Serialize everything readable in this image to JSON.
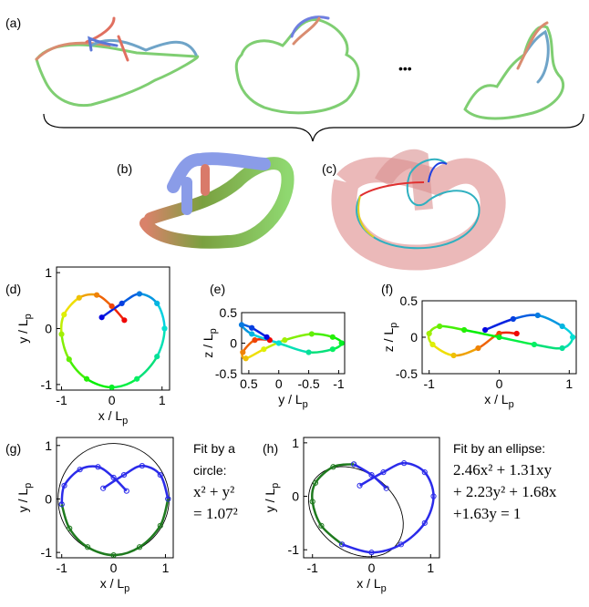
{
  "labels": {
    "a": "(a)",
    "b": "(b)",
    "c": "(c)",
    "ellipsis": "•••"
  },
  "chart_data": [
    {
      "type": "line",
      "panel": "(d)",
      "xlabel": "x / L",
      "xlabel_sub": "p",
      "ylabel": "y / L",
      "ylabel_sub": "p",
      "xlim": [
        -1.1,
        1.15
      ],
      "ylim": [
        -1.1,
        1.1
      ],
      "xticks": [
        -1,
        0,
        1
      ],
      "yticks": [
        -1,
        0,
        1
      ],
      "colormap": "jet",
      "series": [
        {
          "x": [
            0.25,
            0,
            -0.3,
            -0.65,
            -0.95,
            -1.0,
            -0.85,
            -0.5,
            0,
            0.5,
            0.9,
            1.05,
            0.9,
            0.55,
            0.2,
            -0.2
          ],
          "y": [
            0.15,
            0.4,
            0.6,
            0.55,
            0.25,
            -0.1,
            -0.55,
            -0.9,
            -1.05,
            -0.9,
            -0.5,
            0,
            0.45,
            0.62,
            0.45,
            0.2
          ]
        }
      ]
    },
    {
      "type": "line",
      "panel": "(e)",
      "xlabel": "y / L",
      "xlabel_sub": "p",
      "ylabel": "z / L",
      "ylabel_sub": "p",
      "xlim": [
        0.62,
        -1.1
      ],
      "ylim": [
        -0.5,
        0.5
      ],
      "xticks": [
        0.5,
        0,
        -0.5,
        -1
      ],
      "yticks": [
        -0.5,
        0,
        0.5
      ],
      "colormap": "jet",
      "series": [
        {
          "x": [
            0.15,
            0.4,
            0.6,
            0.55,
            0.25,
            -0.1,
            -0.55,
            -0.9,
            -1.05,
            -0.9,
            -0.5,
            0,
            0.45,
            0.62,
            0.45,
            0.2
          ],
          "y": [
            0.05,
            0.05,
            -0.15,
            -0.25,
            -0.1,
            0.05,
            0.15,
            0.1,
            0,
            -0.1,
            -0.15,
            0,
            0.15,
            0.3,
            0.25,
            0.1
          ]
        }
      ]
    },
    {
      "type": "line",
      "panel": "(f)",
      "xlabel": "x / L",
      "xlabel_sub": "p",
      "ylabel": "z / L",
      "ylabel_sub": "p",
      "xlim": [
        -1.1,
        1.1
      ],
      "ylim": [
        -0.5,
        0.5
      ],
      "xticks": [
        -1,
        0,
        1
      ],
      "yticks": [
        -0.5,
        0,
        0.5
      ],
      "colormap": "jet",
      "series": [
        {
          "x": [
            0.25,
            0,
            -0.3,
            -0.65,
            -0.95,
            -1.0,
            -0.85,
            -0.5,
            0,
            0.5,
            0.9,
            1.05,
            0.9,
            0.55,
            0.2,
            -0.2
          ],
          "y": [
            0.05,
            0.05,
            -0.15,
            -0.25,
            -0.1,
            0.05,
            0.15,
            0.1,
            0,
            -0.1,
            -0.15,
            0,
            0.15,
            0.3,
            0.25,
            0.1
          ]
        }
      ]
    },
    {
      "type": "line",
      "panel": "(g)",
      "xlabel": "x / L",
      "xlabel_sub": "p",
      "ylabel": "y / L",
      "ylabel_sub": "p",
      "xlim": [
        -1.1,
        1.15
      ],
      "ylim": [
        -1.1,
        1.15
      ],
      "xticks": [
        -1,
        0,
        1
      ],
      "yticks": [
        -1,
        0,
        1
      ],
      "annotation": [
        "Fit by a",
        "circle:",
        "x² + y²",
        "= 1.07²"
      ],
      "fit_radius": 1.07,
      "series": [
        {
          "color": "#1e7a1e",
          "x": [
            -1.0,
            -0.85,
            -0.5,
            0,
            0.5,
            0.9,
            1.05
          ],
          "y": [
            -0.1,
            -0.55,
            -0.9,
            -1.05,
            -0.9,
            -0.5,
            0
          ]
        },
        {
          "color": "#2b2bea",
          "x": [
            0.25,
            0,
            -0.3,
            -0.65,
            -0.95,
            -1.0,
            null,
            1.05,
            0.9,
            0.55,
            0.2,
            -0.2
          ],
          "y": [
            0.15,
            0.4,
            0.6,
            0.55,
            0.25,
            -0.1,
            null,
            0,
            0.45,
            0.62,
            0.45,
            0.2
          ]
        }
      ]
    },
    {
      "type": "line",
      "panel": "(h)",
      "xlabel": "x / L",
      "xlabel_sub": "p",
      "ylabel": "y / L",
      "ylabel_sub": "p",
      "xlim": [
        -1.15,
        1.15
      ],
      "ylim": [
        -1.15,
        1.1
      ],
      "xticks": [
        -1,
        0,
        1
      ],
      "yticks": [
        -1,
        0,
        1
      ],
      "annotation": [
        "Fit by an ellipse:",
        "2.46x² + 1.31xy",
        "+ 2.23y² + 1.68x",
        "+1.63y = 1"
      ],
      "fit_coefficients": [
        2.46,
        1.31,
        2.23,
        1.68,
        1.63
      ],
      "series": [
        {
          "color": "#1e7a1e",
          "x": [
            -0.3,
            -0.65,
            -0.95,
            -1.0,
            -0.85,
            -0.5
          ],
          "y": [
            0.6,
            0.55,
            0.25,
            -0.1,
            -0.55,
            -0.9
          ]
        },
        {
          "color": "#2b2bea",
          "x": [
            0.25,
            0,
            -0.3,
            null,
            -0.5,
            0,
            0.5,
            0.9,
            1.05,
            0.9,
            0.55,
            0.2,
            -0.2
          ],
          "y": [
            0.15,
            0.4,
            0.6,
            null,
            -0.9,
            -1.05,
            -0.9,
            -0.5,
            0,
            0.45,
            0.62,
            0.45,
            0.2
          ]
        }
      ]
    }
  ]
}
